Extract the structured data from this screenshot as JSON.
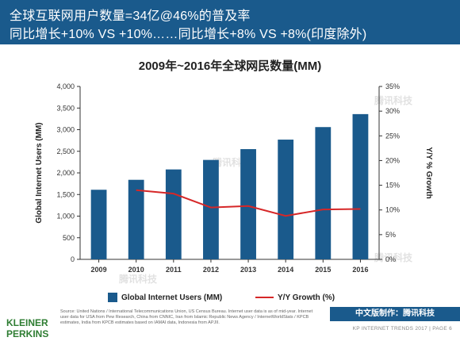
{
  "header": {
    "line1": "全球互联网用户数量=34亿@46%的普及率",
    "line2": "同比增长+10% VS +10%……同比增长+8% VS +8%(印度除外)"
  },
  "chart_data": {
    "type": "bar",
    "title": "2009年~2016年全球网民数量(MM)",
    "categories": [
      "2009",
      "2010",
      "2011",
      "2012",
      "2013",
      "2014",
      "2015",
      "2016"
    ],
    "series": [
      {
        "name": "Global Internet Users (MM)",
        "type": "bar",
        "axis": "left",
        "color": "#1a5a8c",
        "values": [
          1610,
          1840,
          2080,
          2300,
          2550,
          2770,
          3060,
          3360
        ]
      },
      {
        "name": "Y/Y Growth (%)",
        "type": "line",
        "axis": "right",
        "color": "#d62728",
        "values": [
          null,
          14.0,
          13.3,
          10.5,
          10.8,
          8.8,
          10.1,
          10.2
        ]
      }
    ],
    "ylabel": "Global Internet Users (MM)",
    "y2label": "Y/Y % Growth",
    "ylim": [
      0,
      4000
    ],
    "y2lim": [
      0,
      35
    ],
    "yticks": [
      "0",
      "500",
      "1,000",
      "1,500",
      "2,000",
      "2,500",
      "3,000",
      "3,500",
      "4,000"
    ],
    "y2ticks": [
      "0%",
      "5%",
      "10%",
      "15%",
      "20%",
      "25%",
      "30%",
      "35%"
    ],
    "grid": false,
    "legend": "bottom"
  },
  "watermark_text": "腾讯科技",
  "footer": {
    "logo_line1": "KLEINER",
    "logo_line2": "PERKINS",
    "source": "Source: United Nations / International Telecommunications Union, US Census Bureau. Internet user data is as of mid-year. Internet user data for USA from Pew Research, China from CNNIC, Iran from Islamic Republic News Agency / InternetWorldStats / KPCB estimates, India from KPCB estimates based on IAMAI data, Indonesia from APJII.",
    "badge": "中文版制作：腾讯科技",
    "page": "KP INTERNET TRENDS 2017  |  PAGE 6"
  }
}
